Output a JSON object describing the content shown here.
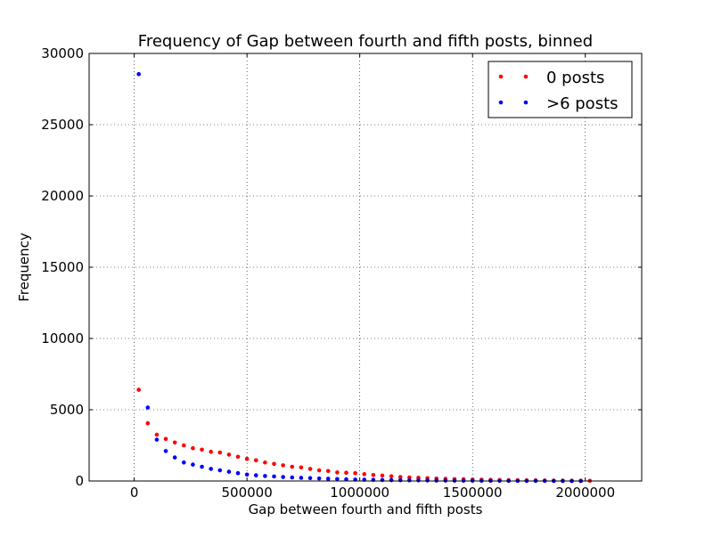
{
  "chart_data": {
    "type": "scatter",
    "title": "Frequency of Gap between fourth and fifth posts, binned",
    "xlabel": "Gap between fourth and fifth posts",
    "ylabel": "Frequency",
    "xlim": [
      -200000,
      2250000
    ],
    "ylim": [
      0,
      30000
    ],
    "xticks": [
      0,
      500000,
      1000000,
      1500000,
      2000000
    ],
    "xtick_labels": [
      "0",
      "500000",
      "1000000",
      "1500000",
      "2000000"
    ],
    "yticks": [
      0,
      5000,
      10000,
      15000,
      20000,
      25000,
      30000
    ],
    "ytick_labels": [
      "0",
      "5000",
      "10000",
      "15000",
      "20000",
      "25000",
      "30000"
    ],
    "grid": true,
    "legend_position": "top-right",
    "series": [
      {
        "name": "0 posts",
        "color": "#ff0000",
        "x": [
          20000,
          60000,
          100000,
          140000,
          180000,
          220000,
          260000,
          300000,
          340000,
          380000,
          420000,
          460000,
          500000,
          540000,
          580000,
          620000,
          660000,
          700000,
          740000,
          780000,
          820000,
          860000,
          900000,
          940000,
          980000,
          1020000,
          1060000,
          1100000,
          1140000,
          1180000,
          1220000,
          1260000,
          1300000,
          1340000,
          1380000,
          1420000,
          1460000,
          1500000,
          1540000,
          1580000,
          1620000,
          1660000,
          1700000,
          1740000,
          1780000,
          1820000,
          1860000,
          1900000,
          1940000,
          1980000,
          2020000
        ],
        "y": [
          6400,
          4050,
          3250,
          2950,
          2700,
          2500,
          2300,
          2200,
          2050,
          2000,
          1850,
          1700,
          1550,
          1450,
          1300,
          1200,
          1100,
          1000,
          950,
          850,
          750,
          700,
          600,
          580,
          550,
          480,
          420,
          380,
          330,
          280,
          250,
          230,
          200,
          170,
          150,
          130,
          120,
          100,
          90,
          80,
          70,
          60,
          55,
          50,
          40,
          35,
          30,
          25,
          20,
          18,
          15
        ]
      },
      {
        "name": ">6 posts",
        "color": "#0000ff",
        "x": [
          20000,
          60000,
          100000,
          140000,
          180000,
          220000,
          260000,
          300000,
          340000,
          380000,
          420000,
          460000,
          500000,
          540000,
          580000,
          620000,
          660000,
          700000,
          740000,
          780000,
          820000,
          860000,
          900000,
          940000,
          980000,
          1020000,
          1060000,
          1100000,
          1140000,
          1180000,
          1220000,
          1260000,
          1300000,
          1340000,
          1380000,
          1420000,
          1460000,
          1500000,
          1540000,
          1580000,
          1620000,
          1660000,
          1700000,
          1740000,
          1780000,
          1820000,
          1860000,
          1900000,
          1940000,
          1980000
        ],
        "y": [
          28550,
          5150,
          2900,
          2100,
          1650,
          1300,
          1150,
          1000,
          850,
          750,
          650,
          550,
          450,
          400,
          350,
          320,
          280,
          250,
          220,
          200,
          180,
          160,
          140,
          120,
          100,
          90,
          80,
          70,
          60,
          55,
          50,
          45,
          40,
          35,
          30,
          25,
          22,
          20,
          18,
          15,
          12,
          10,
          8,
          6,
          5,
          4,
          3,
          2,
          2,
          1
        ]
      }
    ]
  }
}
